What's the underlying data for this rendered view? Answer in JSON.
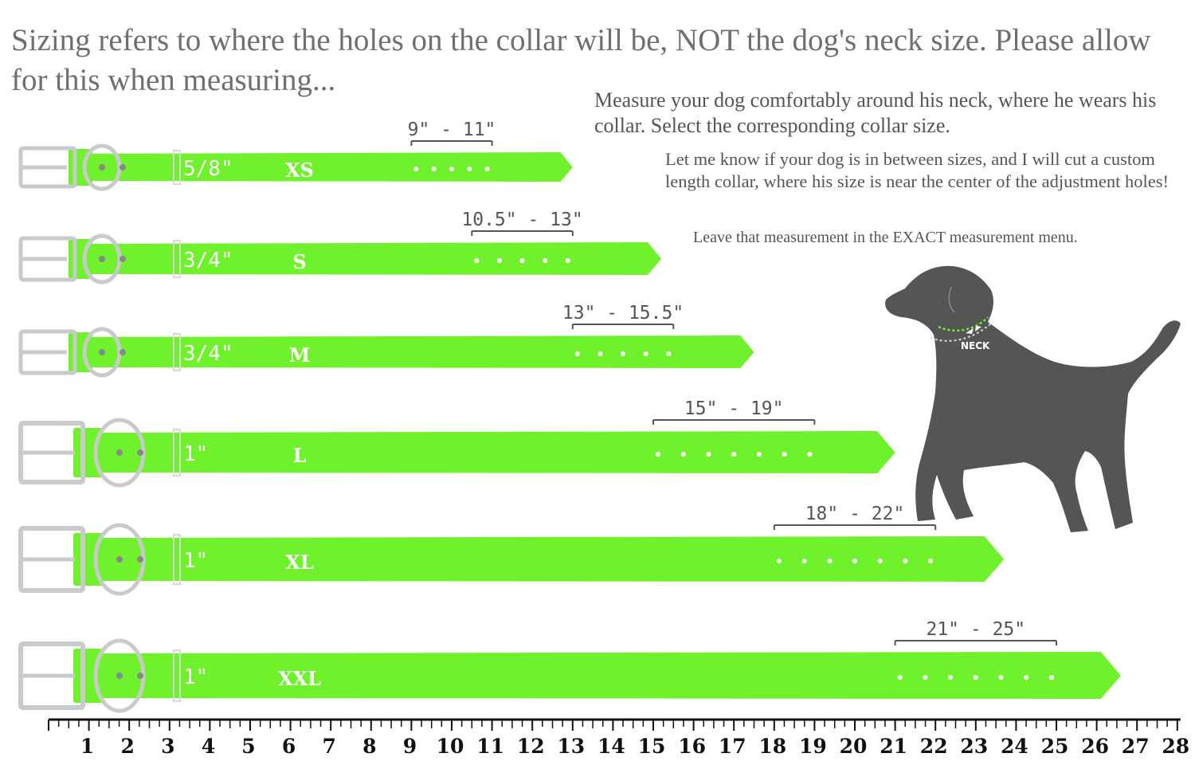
{
  "headline": "Sizing refers to where the holes on the collar will be, NOT the dog's neck size. Please allow for this when measuring...",
  "instructions": {
    "measure": "Measure your dog comfortably around his neck, where he wears his collar. Select the corresponding collar size.",
    "between_sizes": "Let me know if your dog is in between sizes, and I will cut a custom length collar, where his size is near the center of the adjustment holes!",
    "exact_menu": "Leave that measurement in the EXACT measurement menu."
  },
  "dog_label": "NECK",
  "colors": {
    "strap": "#6ff22c",
    "hardware": "#c8cacb",
    "dog": "#555555",
    "text": "#555555"
  },
  "collars": [
    {
      "size": "XS",
      "width": "5/8\"",
      "range": "9\" - 11\"",
      "range_start": 9,
      "range_end": 11,
      "holes": 5,
      "length": 13
    },
    {
      "size": "S",
      "width": "3/4\"",
      "range": "10.5\" - 13\"",
      "range_start": 10.5,
      "range_end": 13,
      "holes": 5,
      "length": 15.2
    },
    {
      "size": "M",
      "width": "3/4\"",
      "range": "13\" - 15.5\"",
      "range_start": 13,
      "range_end": 15.5,
      "holes": 5,
      "length": 17.5
    },
    {
      "size": "L",
      "width": "1\"",
      "range": "15\" - 19\"",
      "range_start": 15,
      "range_end": 19,
      "holes": 7,
      "length": 21
    },
    {
      "size": "XL",
      "width": "1\"",
      "range": "18\" - 22\"",
      "range_start": 18,
      "range_end": 22,
      "holes": 7,
      "length": 23.7
    },
    {
      "size": "XXL",
      "width": "1\"",
      "range": "21\" - 25\"",
      "range_start": 21,
      "range_end": 25,
      "holes": 7,
      "length": 26.6
    }
  ],
  "ruler": {
    "unit": "inches",
    "min": 0,
    "max": 28,
    "labels": [
      "1",
      "2",
      "3",
      "4",
      "5",
      "6",
      "7",
      "8",
      "9",
      "10",
      "11",
      "12",
      "13",
      "14",
      "15",
      "16",
      "17",
      "18",
      "19",
      "20",
      "21",
      "22",
      "23",
      "24",
      "25",
      "26",
      "27",
      "28"
    ]
  }
}
